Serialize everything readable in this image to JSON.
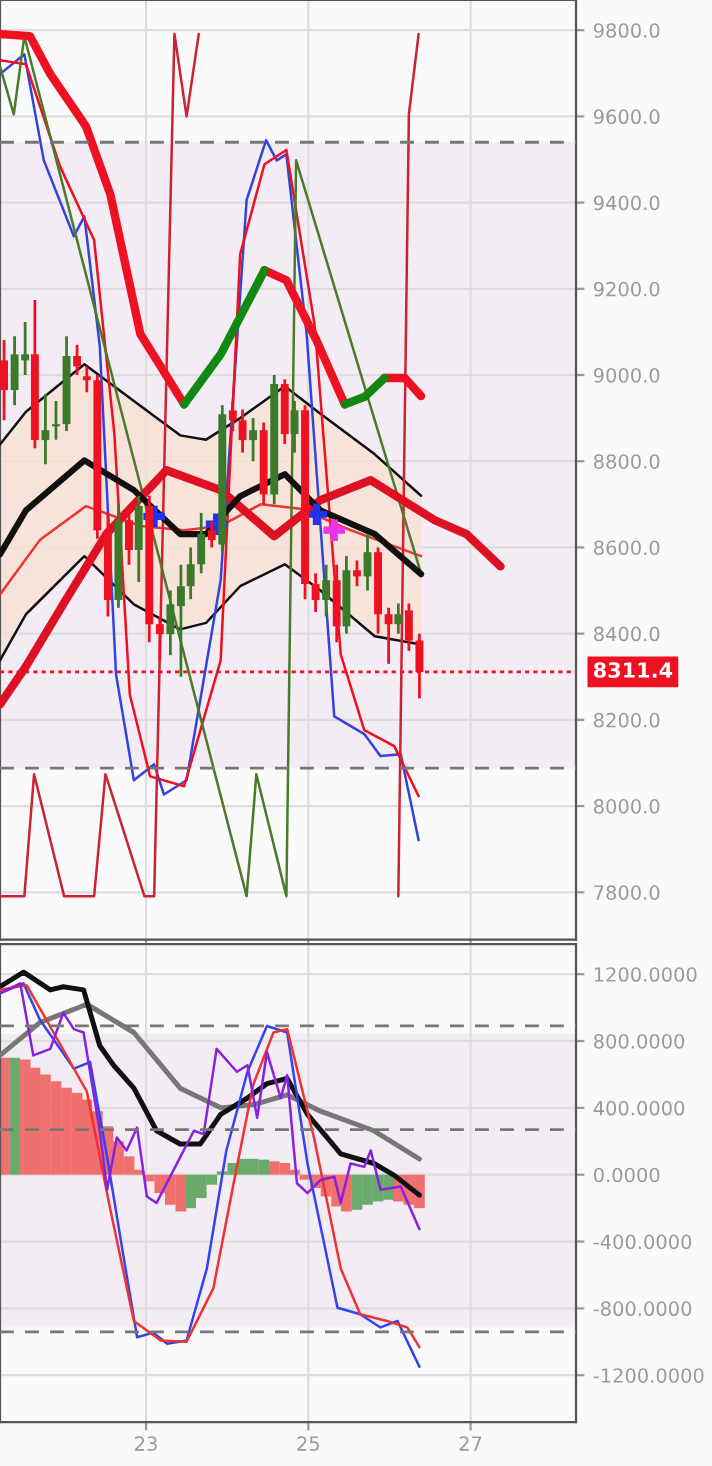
{
  "chart_data": [
    {
      "type": "candlestick",
      "x": [
        21.25,
        21.38,
        21.51,
        21.63,
        21.76,
        21.89,
        22.02,
        22.15,
        22.27,
        22.4,
        22.53,
        22.66,
        22.79,
        22.91,
        23.04,
        23.17,
        23.3,
        23.43,
        23.55,
        23.68,
        23.81,
        23.94,
        24.07,
        24.19,
        24.32,
        24.45,
        24.58,
        24.71,
        24.83,
        24.96,
        25.09,
        25.22,
        25.35,
        25.47,
        25.6,
        25.73,
        25.86,
        25.99,
        26.11,
        26.24,
        26.37
      ],
      "ohlc": [
        [
          9034,
          9081,
          8895,
          8965
        ],
        [
          8965,
          9090,
          8930,
          9048
        ],
        [
          9034,
          9123,
          9000,
          9048
        ],
        [
          9048,
          9174,
          8830,
          8849
        ],
        [
          8849,
          8955,
          8793,
          8872
        ],
        [
          8881,
          8940,
          8850,
          8886
        ],
        [
          8886,
          9090,
          8870,
          9044
        ],
        [
          9044,
          9070,
          9000,
          9020
        ],
        [
          8997,
          9020,
          8960,
          8988
        ],
        [
          8988,
          9000,
          8620,
          8640
        ],
        [
          8640,
          8680,
          8440,
          8478
        ],
        [
          8478,
          8700,
          8460,
          8663
        ],
        [
          8663,
          8690,
          8560,
          8594
        ],
        [
          8594,
          8720,
          8520,
          8696
        ],
        [
          8696,
          8720,
          8380,
          8422
        ],
        [
          8422,
          8440,
          8338,
          8399
        ],
        [
          8399,
          8500,
          8350,
          8468
        ],
        [
          8464,
          8560,
          8300,
          8510
        ],
        [
          8510,
          8600,
          8480,
          8561
        ],
        [
          8561,
          8680,
          8540,
          8631
        ],
        [
          8640,
          8660,
          8600,
          8617
        ],
        [
          8607,
          8930,
          8590,
          8909
        ],
        [
          8918,
          8940,
          8870,
          8895
        ],
        [
          8895,
          8920,
          8820,
          8849
        ],
        [
          8849,
          8900,
          8800,
          8872
        ],
        [
          8872,
          8890,
          8700,
          8723
        ],
        [
          8723,
          9000,
          8700,
          8979
        ],
        [
          8979,
          8990,
          8840,
          8863
        ],
        [
          8863,
          8940,
          8820,
          8918
        ],
        [
          8918,
          8930,
          8480,
          8515
        ],
        [
          8515,
          8540,
          8450,
          8478
        ],
        [
          8478,
          8560,
          8440,
          8524
        ],
        [
          8524,
          8560,
          8380,
          8417
        ],
        [
          8417,
          8580,
          8400,
          8547
        ],
        [
          8547,
          8570,
          8510,
          8533
        ],
        [
          8533,
          8630,
          8500,
          8589
        ],
        [
          8589,
          8600,
          8400,
          8445
        ],
        [
          8445,
          8460,
          8330,
          8422
        ],
        [
          8422,
          8470,
          8400,
          8445
        ],
        [
          8454,
          8470,
          8360,
          8384
        ],
        [
          8384,
          8400,
          8250,
          8311
        ]
      ],
      "colors": [
        "#ee1122",
        "#3a7a2a",
        "#3a7a2a",
        "#ee1122",
        "#3a7a2a",
        "#3a7a2a",
        "#3a7a2a",
        "#ee1122",
        "#ee1122",
        "#ee1122",
        "#ee1122",
        "#3a7a2a",
        "#ee1122",
        "#3a7a2a",
        "#ee1122",
        "#ee1122",
        "#3a7a2a",
        "#3a7a2a",
        "#3a7a2a",
        "#3a7a2a",
        "#ee1122",
        "#3a7a2a",
        "#ee1122",
        "#ee1122",
        "#3a7a2a",
        "#ee1122",
        "#3a7a2a",
        "#ee1122",
        "#3a7a2a",
        "#ee1122",
        "#ee1122",
        "#3a7a2a",
        "#ee1122",
        "#3a7a2a",
        "#ee1122",
        "#3a7a2a",
        "#ee1122",
        "#ee1122",
        "#3a7a2a",
        "#ee1122",
        "#ee1122"
      ],
      "series": [
        {
          "type": "line",
          "color": "#ee1122",
          "x": [
            21.2,
            21.57,
            21.82,
            22.26,
            22.56,
            22.93,
            23.18,
            23.47,
            23.92,
            24.46,
            24.73,
            25.1,
            25.45,
            25.7,
            25.94,
            26.19,
            26.39
          ],
          "values": [
            9791,
            9786,
            9698,
            9577,
            9419,
            9095,
            9020,
            8932,
            null,
            9243,
            9220,
            9081,
            8932,
            null,
            8993,
            8993,
            8951
          ]
        },
        {
          "type": "line",
          "color": "#118811",
          "x": [
            23.47,
            23.92,
            24.46,
            25.0,
            25.45,
            25.7,
            25.94
          ],
          "values": [
            8932,
            9048,
            9243,
            null,
            8932,
            8950,
            8993
          ]
        },
        {
          "type": "line",
          "color": "#dd1122",
          "x": [
            21.2,
            21.52,
            22.01,
            22.51,
            23.25,
            23.92,
            24.58,
            25.15,
            25.77,
            26.56,
            26.95,
            27.37
          ],
          "values": [
            8236,
            8324,
            8478,
            8631,
            8779,
            8733,
            8626,
            8710,
            8756,
            8663,
            8631,
            8556
          ]
        },
        {
          "type": "line",
          "color": "#111111",
          "x": [
            21.2,
            21.52,
            22.24,
            22.85,
            23.42,
            23.74,
            24.16,
            24.71,
            25.15,
            25.82,
            26.39
          ],
          "values": [
            8584,
            8686,
            8802,
            8733,
            8631,
            8631,
            8719,
            8770,
            8686,
            8631,
            8538
          ],
          "lower": [
            8338,
            8445,
            8580,
            8468,
            8410,
            8425,
            8510,
            8561,
            8500,
            8394,
            8375
          ],
          "upper": [
            8839,
            8915,
            9025,
            8940,
            8860,
            8850,
            8900,
            8974,
            8910,
            8816,
            8720
          ]
        },
        {
          "type": "line",
          "color": "#111111",
          "x": [
            21.2,
            21.52,
            22.24,
            22.85,
            23.42,
            23.74,
            24.16,
            24.71,
            25.15,
            25.82,
            26.39
          ],
          "values": [
            8839,
            8915,
            9025,
            8940,
            8860,
            8850,
            8900,
            8974,
            8910,
            8816,
            8720
          ]
        },
        {
          "type": "line",
          "color": "#111111",
          "x": [
            21.2,
            21.52,
            22.24,
            22.85,
            23.42,
            23.74,
            24.16,
            24.71,
            25.15,
            25.82,
            26.39
          ],
          "values": [
            8338,
            8445,
            8580,
            8468,
            8410,
            8425,
            8510,
            8561,
            8500,
            8394,
            8375
          ]
        },
        {
          "type": "line",
          "color": "#ee3333",
          "x": [
            21.2,
            21.69,
            22.26,
            22.93,
            23.47,
            23.92,
            24.41,
            24.9,
            25.52,
            26.39
          ],
          "values": [
            8491,
            8617,
            8696,
            8650,
            8640,
            8650,
            8700,
            8690,
            8640,
            8580
          ]
        },
        {
          "type": "line",
          "color": "#3344dd",
          "x": [
            21.2,
            21.5,
            21.74,
            22.11,
            22.24,
            22.43,
            22.63,
            22.85,
            23.1,
            23.22,
            23.5,
            23.92,
            24.24,
            24.48,
            24.61,
            24.73,
            24.98,
            25.32,
            25.69,
            25.89,
            26.14,
            26.36
          ],
          "values": [
            9698,
            9744,
            9498,
            9322,
            9368,
            9067,
            8306,
            8060,
            8097,
            8027,
            8060,
            8524,
            9406,
            9545,
            9498,
            9512,
            9095,
            8208,
            8167,
            8116,
            8120,
            7921
          ]
        },
        {
          "type": "line",
          "color": "#ee1122",
          "x": [
            21.2,
            21.52,
            21.94,
            22.36,
            22.61,
            22.8,
            23.05,
            23.47,
            23.92,
            24.16,
            24.46,
            24.73,
            25.08,
            25.4,
            25.69,
            26.06,
            26.36
          ],
          "values": [
            9730,
            9721,
            9484,
            9313,
            8863,
            8259,
            8069,
            8046,
            8338,
            9280,
            9489,
            9522,
            9113,
            8352,
            8176,
            8139,
            8023
          ]
        },
        {
          "type": "line",
          "color": "#cc2233",
          "x": [
            21.2,
            21.5,
            21.62,
            21.99,
            22.36,
            22.5,
            22.98,
            23.1,
            23.35,
            23.5,
            23.65,
            25.11,
            26.11,
            26.24,
            26.36
          ],
          "values": [
            7791,
            7791,
            8074,
            7791,
            7791,
            8074,
            7791,
            7791,
            9791,
            9600,
            9791,
            null,
            7791,
            9605,
            9791
          ]
        },
        {
          "type": "line",
          "color": "#4a7a2a",
          "x": [
            21.2,
            21.37,
            21.5,
            24.24,
            24.36,
            24.73,
            24.85,
            26.39
          ],
          "values": [
            9716,
            9605,
            9786,
            7791,
            8074,
            7791,
            9498,
            8540
          ]
        },
        {
          "type": "scatter",
          "marker": "cross",
          "color": "#2233ee",
          "x": [
            23.1,
            23.87,
            25.1
          ],
          "values": [
            8672,
            8654,
            8677
          ]
        },
        {
          "type": "scatter",
          "marker": "cross",
          "color": "#ee33ee",
          "x": [
            25.32
          ],
          "values": [
            8640
          ]
        }
      ],
      "bands": [
        {
          "axis": "y",
          "from": 8088,
          "to": 9540,
          "color": "#f3ecf4"
        }
      ],
      "ref_lines": [
        {
          "axis": "y",
          "value": 9540,
          "color": "#777777",
          "line_style": "dashed"
        },
        {
          "axis": "y",
          "value": 8088,
          "color": "#777777",
          "line_style": "dashed"
        },
        {
          "axis": "y",
          "value": 8311.4,
          "label": "8311.4",
          "color": "#ee1122",
          "line_style": "dotted"
        }
      ],
      "xlim": [
        21.2,
        28.3
      ],
      "xticks": [
        23,
        25,
        27
      ],
      "ylim": [
        7690,
        9870
      ],
      "yticks": [
        {
          "value": 7800,
          "label": "7800.0"
        },
        {
          "value": 8000,
          "label": "8000.0"
        },
        {
          "value": 8200,
          "label": "8200.0"
        },
        {
          "value": 8400,
          "label": "8400.0"
        },
        {
          "value": 8600,
          "label": "8600.0"
        },
        {
          "value": 8800,
          "label": "8800.0"
        },
        {
          "value": 9000,
          "label": "9000.0"
        },
        {
          "value": 9200,
          "label": "9200.0"
        },
        {
          "value": 9400,
          "label": "9400.0"
        },
        {
          "value": 9600,
          "label": "9600.0"
        },
        {
          "value": 9800,
          "label": "9800.0"
        }
      ],
      "tick_labels": "y",
      "grid": true
    },
    {
      "type": "line",
      "series": [
        {
          "type": "bar",
          "x": [
            21.25,
            21.38,
            21.51,
            21.63,
            21.76,
            21.89,
            22.02,
            22.15,
            22.27,
            22.4,
            22.53,
            22.66,
            22.79,
            22.91,
            23.04,
            23.17,
            23.3,
            23.43,
            23.55,
            23.68,
            23.81,
            23.94,
            24.07,
            24.19,
            24.32,
            24.45,
            24.58,
            24.71,
            24.83,
            24.96,
            25.09,
            25.22,
            25.35,
            25.47,
            25.6,
            25.73,
            25.86,
            25.99,
            26.11,
            26.24,
            26.37
          ],
          "values": [
            700,
            700,
            690,
            640,
            600,
            560,
            520,
            490,
            450,
            380,
            290,
            200,
            110,
            30,
            -40,
            -110,
            -180,
            -220,
            -200,
            -140,
            -60,
            20,
            70,
            95,
            95,
            90,
            80,
            70,
            30,
            -30,
            -80,
            -130,
            -190,
            -220,
            -210,
            -180,
            -160,
            -150,
            -160,
            -180,
            -200
          ],
          "colors": [
            "#f07070",
            "#6aaa6a",
            "#f07070",
            "#f07070",
            "#f07070",
            "#f07070",
            "#f07070",
            "#f07070",
            "#f07070",
            "#f07070",
            "#f07070",
            "#f07070",
            "#f07070",
            "#f07070",
            "#f07070",
            "#f07070",
            "#f07070",
            "#f07070",
            "#6aaa6a",
            "#6aaa6a",
            "#6aaa6a",
            "#6aaa6a",
            "#6aaa6a",
            "#6aaa6a",
            "#6aaa6a",
            "#6aaa6a",
            "#f07070",
            "#f07070",
            "#f07070",
            "#f07070",
            "#f07070",
            "#f07070",
            "#f07070",
            "#f07070",
            "#6aaa6a",
            "#6aaa6a",
            "#6aaa6a",
            "#6aaa6a",
            "#f07070",
            "#f07070",
            "#f07070"
          ]
        },
        {
          "type": "line",
          "color": "#777777",
          "x": [
            21.2,
            21.69,
            22.27,
            22.85,
            23.42,
            23.92,
            24.33,
            24.74,
            25.15,
            25.81,
            26.37
          ],
          "values": [
            714,
            910,
            1020,
            851,
            518,
            400,
            420,
            478,
            380,
            263,
            94
          ]
        },
        {
          "type": "line",
          "color": "#111111",
          "x": [
            21.2,
            21.49,
            21.82,
            21.98,
            22.23,
            22.43,
            22.6,
            22.85,
            23.13,
            23.42,
            23.67,
            23.92,
            24.25,
            24.49,
            24.74,
            24.99,
            25.23,
            25.4,
            25.81,
            26.06,
            26.37
          ],
          "values": [
            1125,
            1212,
            1106,
            1125,
            1106,
            772,
            655,
            518,
            263,
            184,
            184,
            361,
            459,
            545,
            576,
            361,
            223,
            125,
            67,
            -4,
            -122
          ]
        },
        {
          "type": "line",
          "color": "#3344ee",
          "x": [
            21.2,
            21.49,
            21.69,
            22.11,
            22.31,
            22.52,
            22.72,
            22.89,
            23.09,
            23.26,
            23.5,
            23.75,
            23.99,
            24.25,
            24.49,
            24.74,
            24.99,
            25.36,
            25.64,
            25.89,
            26.1,
            26.37
          ],
          "values": [
            1086,
            1145,
            929,
            635,
            674,
            106,
            -483,
            -973,
            -945,
            -1012,
            -992,
            -561,
            145,
            616,
            890,
            851,
            67,
            -796,
            -835,
            -914,
            -875,
            -1149
          ]
        },
        {
          "type": "line",
          "color": "#ee3333",
          "x": [
            21.2,
            21.53,
            21.86,
            22.27,
            22.56,
            22.85,
            23.18,
            23.5,
            23.83,
            24.08,
            24.32,
            24.57,
            24.74,
            25.07,
            25.4,
            25.64,
            25.97,
            26.22,
            26.37
          ],
          "values": [
            1106,
            1133,
            851,
            498,
            -208,
            -875,
            -992,
            -1000,
            -679,
            -51,
            537,
            851,
            871,
            223,
            -561,
            -835,
            -875,
            -914,
            -1032
          ]
        },
        {
          "type": "line",
          "color": "#8822dd",
          "x": [
            21.2,
            21.45,
            21.61,
            21.82,
            21.98,
            22.11,
            22.23,
            22.43,
            22.52,
            22.64,
            22.76,
            22.89,
            23.01,
            23.13,
            23.59,
            23.71,
            23.87,
            24.12,
            24.25,
            24.37,
            24.49,
            24.66,
            24.74,
            24.86,
            24.99,
            25.15,
            25.32,
            25.4,
            25.52,
            25.69,
            25.77,
            25.89,
            26.14,
            26.37
          ],
          "values": [
            1086,
            1145,
            714,
            753,
            969,
            871,
            851,
            263,
            -90,
            223,
            145,
            282,
            -130,
            -169,
            263,
            243,
            753,
            616,
            655,
            341,
            733,
            459,
            596,
            -51,
            -110,
            -32,
            -12,
            -169,
            67,
            47,
            145,
            -90,
            -71,
            -326
          ]
        }
      ],
      "bands": [
        {
          "axis": "y",
          "from": -914,
          "to": 843,
          "color": "#f3ecf4"
        }
      ],
      "ref_lines": [
        {
          "axis": "y",
          "value": 890,
          "color": "#777777",
          "line_style": "dashed"
        },
        {
          "axis": "y",
          "value": 270,
          "color": "#777777",
          "line_style": "dashed"
        },
        {
          "axis": "y",
          "value": -940,
          "color": "#777777",
          "line_style": "dashed"
        }
      ],
      "xlim": [
        21.2,
        28.3
      ],
      "xticks": [
        23,
        25,
        27
      ],
      "ylim": [
        -1480,
        1380
      ],
      "yticks": [
        {
          "value": -1200,
          "label": "-1200.0000"
        },
        {
          "value": -800,
          "label": "-800.0000"
        },
        {
          "value": -400,
          "label": "-400.0000"
        },
        {
          "value": 0,
          "label": "0.0000"
        },
        {
          "value": 400,
          "label": "400.0000"
        },
        {
          "value": 800,
          "label": "800.0000"
        },
        {
          "value": 1200,
          "label": "1200.0000"
        }
      ],
      "grid": true
    }
  ]
}
